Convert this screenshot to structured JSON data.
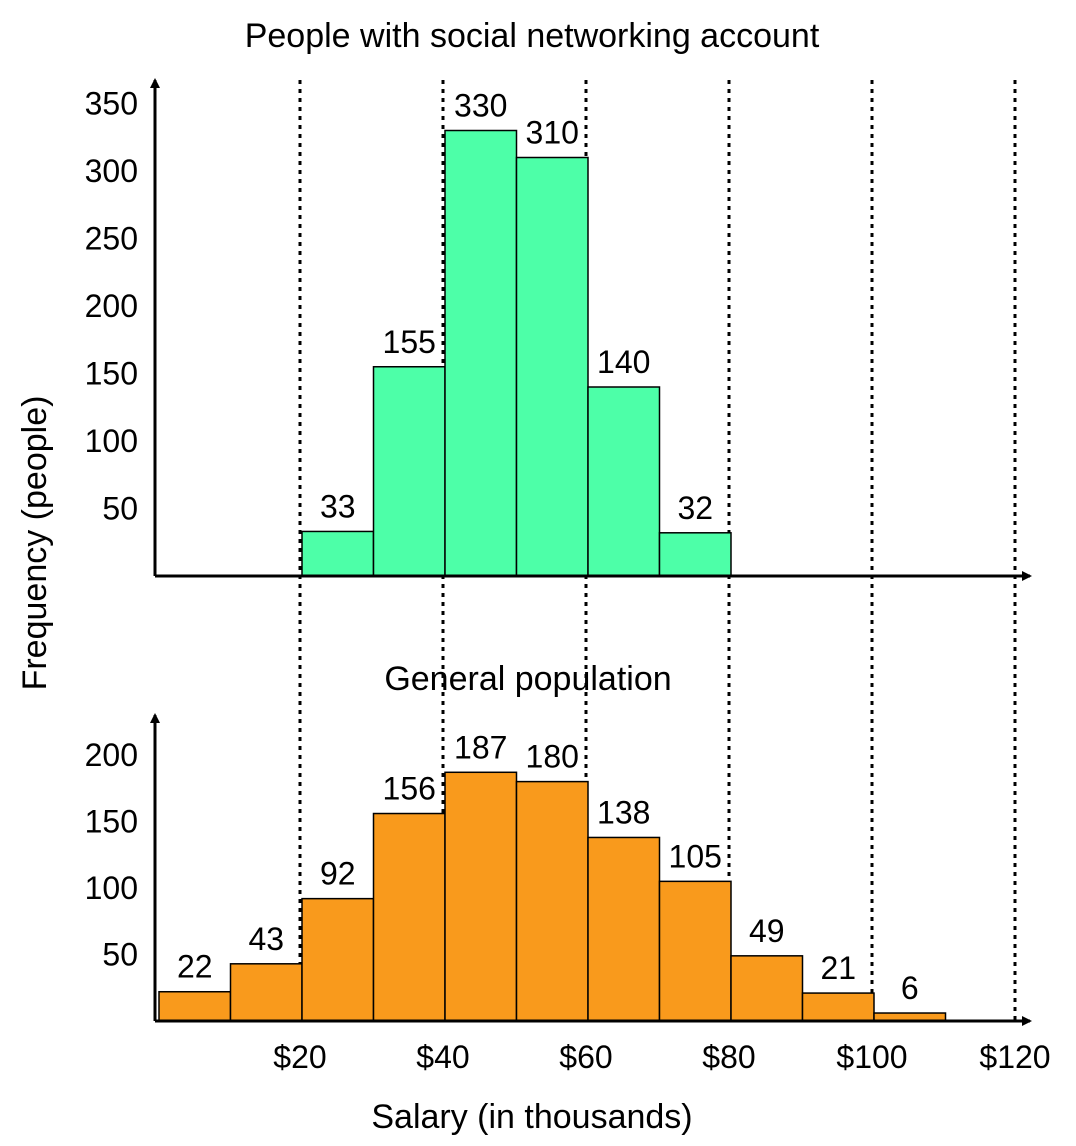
{
  "chart_data": [
    {
      "type": "bar",
      "title": "People with social networking account",
      "ylabel": "Frequency (people)",
      "xlabel": "Salary (in thousands)",
      "bins": [
        [
          20,
          30
        ],
        [
          30,
          40
        ],
        [
          40,
          50
        ],
        [
          50,
          60
        ],
        [
          60,
          70
        ],
        [
          70,
          80
        ]
      ],
      "values": [
        33,
        155,
        330,
        310,
        140,
        32
      ],
      "yticks": [
        50,
        100,
        150,
        200,
        250,
        300,
        350
      ],
      "ylim": [
        0,
        360
      ],
      "color": "#4dffa8"
    },
    {
      "type": "bar",
      "title": "General population",
      "ylabel": "Frequency (people)",
      "xlabel": "Salary (in thousands)",
      "bins": [
        [
          0,
          10
        ],
        [
          10,
          20
        ],
        [
          20,
          30
        ],
        [
          30,
          40
        ],
        [
          40,
          50
        ],
        [
          50,
          60
        ],
        [
          60,
          70
        ],
        [
          70,
          80
        ],
        [
          80,
          90
        ],
        [
          90,
          100
        ],
        [
          100,
          110
        ]
      ],
      "values": [
        22,
        43,
        92,
        156,
        187,
        180,
        138,
        105,
        49,
        21,
        6
      ],
      "yticks": [
        50,
        100,
        150,
        200
      ],
      "ylim": [
        0,
        210
      ],
      "color": "#f99a1c"
    }
  ],
  "shared": {
    "ylabel": "Frequency (people)",
    "xlabel": "Salary (in thousands)",
    "xticks": [
      20,
      40,
      60,
      80,
      100,
      120
    ],
    "xtick_labels": [
      "$20",
      "$40",
      "$60",
      "$80",
      "$100",
      "$120"
    ],
    "xlim": [
      0,
      120
    ],
    "dotted_gridlines_at": [
      20,
      40,
      60,
      80,
      100,
      120
    ]
  }
}
